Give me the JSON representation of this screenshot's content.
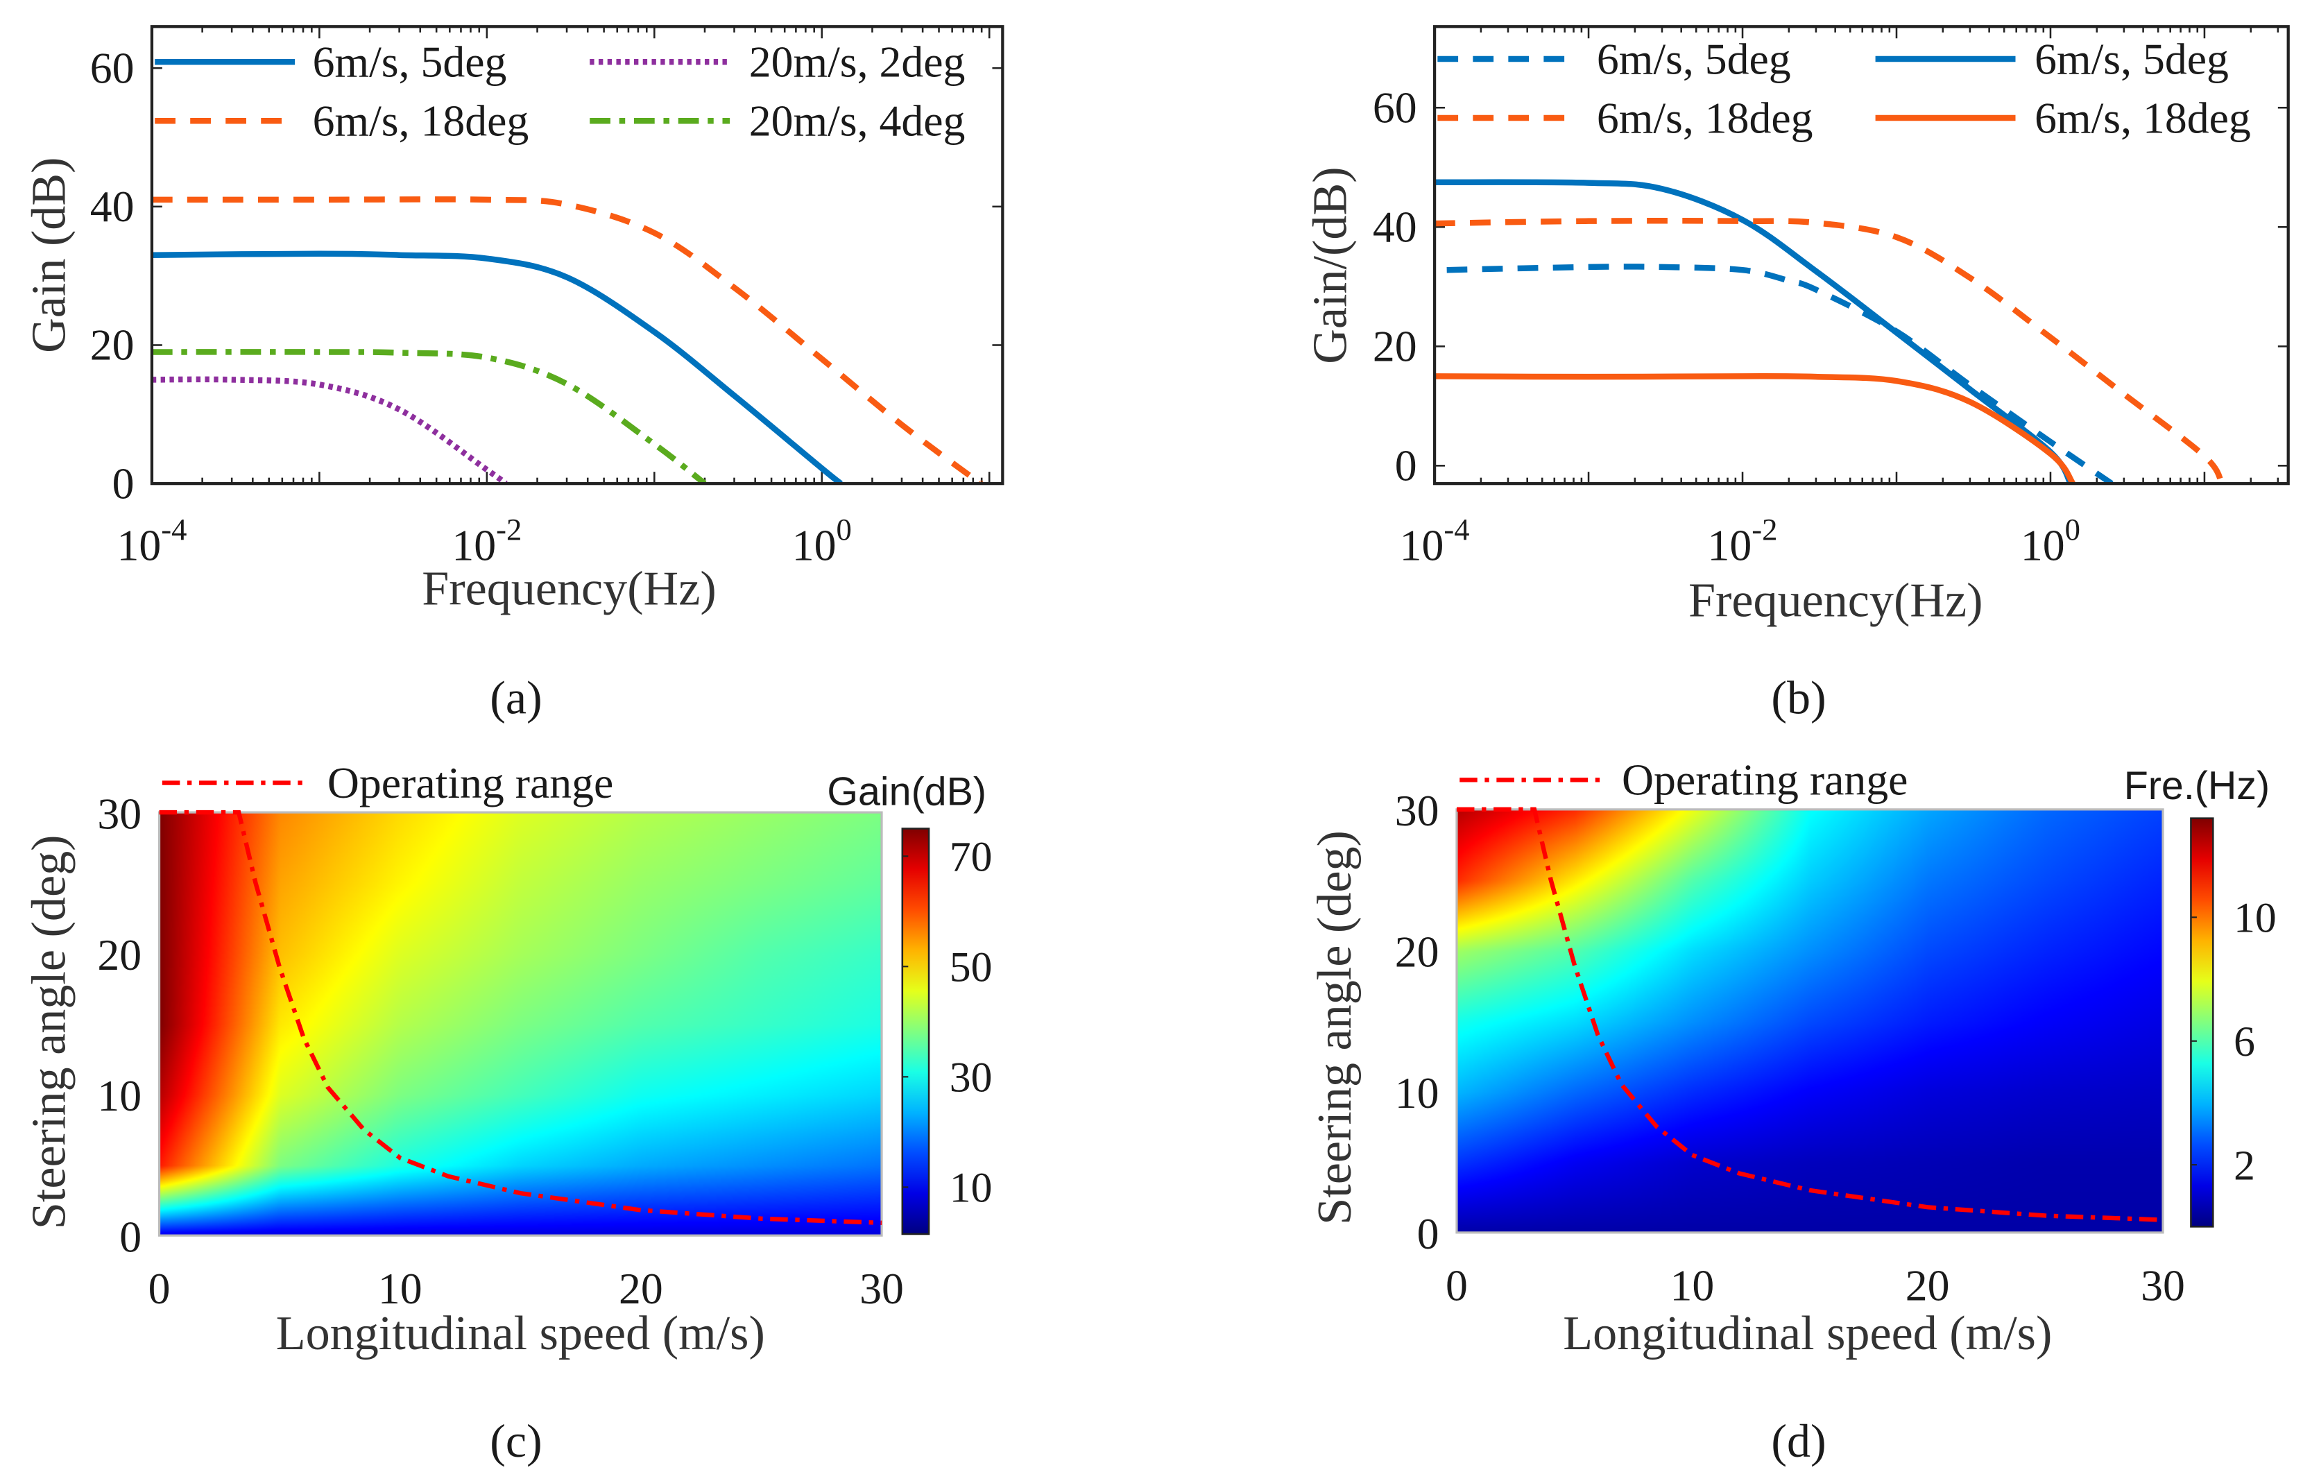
{
  "colors": {
    "blue": "#0072BD",
    "orange": "#F95B12",
    "purple": "#8E2F9E",
    "green": "#5AAB1E",
    "red": "#FF0000"
  },
  "captions": {
    "a": "(a)",
    "b": "(b)",
    "c": "(c)",
    "d": "(d)"
  },
  "chart_data": [
    {
      "id": "a",
      "type": "line",
      "xscale": "log",
      "xlim": [
        0.0001,
        12
      ],
      "ylim": [
        0,
        66
      ],
      "xlabel": "Frequency(Hz)",
      "ylabel": "Gain (dB)",
      "xticks": [
        {
          "v": 0.0001,
          "base": "10",
          "exp": "-4"
        },
        {
          "v": 0.01,
          "base": "10",
          "exp": "-2"
        },
        {
          "v": 1,
          "base": "10",
          "exp": "0"
        }
      ],
      "yticks": [
        0,
        20,
        40,
        60
      ],
      "legend_position": "top",
      "series": [
        {
          "name": "6m/s, 5deg",
          "color": "blue",
          "style": "solid",
          "x": [
            0.0001,
            0.001,
            0.003,
            0.01,
            0.03,
            0.1,
            0.3,
            1,
            1.3
          ],
          "y": [
            33,
            33.2,
            33,
            32.5,
            29.8,
            21.9,
            12.7,
            2.2,
            0
          ]
        },
        {
          "name": "20m/s, 2deg",
          "color": "purple",
          "style": "dotted",
          "x": [
            0.0001,
            0.0003,
            0.001,
            0.003,
            0.01,
            0.013
          ],
          "y": [
            15,
            15,
            14.3,
            10.7,
            2,
            0
          ]
        },
        {
          "name": "6m/s, 18deg",
          "color": "orange",
          "style": "dashed",
          "x": [
            0.0001,
            0.001,
            0.01,
            0.03,
            0.1,
            0.3,
            1,
            3,
            8,
            9
          ],
          "y": [
            41,
            41,
            41,
            40.3,
            36.2,
            28.3,
            18,
            8.5,
            0.8,
            0
          ]
        },
        {
          "name": "20m/s, 4deg",
          "color": "green",
          "style": "dashdot",
          "x": [
            0.0001,
            0.001,
            0.003,
            0.01,
            0.03,
            0.1,
            0.2
          ],
          "y": [
            19,
            19,
            18.9,
            18.2,
            14.4,
            5.7,
            0
          ]
        }
      ]
    },
    {
      "id": "b",
      "type": "line",
      "xscale": "log",
      "xlim": [
        0.0001,
        35
      ],
      "ylim": [
        -3,
        73.6
      ],
      "xlabel": "Frequency(Hz)",
      "ylabel": "Gain/(dB)",
      "xticks": [
        {
          "v": 0.0001,
          "base": "10",
          "exp": "-4"
        },
        {
          "v": 0.01,
          "base": "10",
          "exp": "-2"
        },
        {
          "v": 1,
          "base": "10",
          "exp": "0"
        }
      ],
      "yticks": [
        0,
        20,
        40,
        60
      ],
      "legend_position": "top",
      "series": [
        {
          "name": "6m/s, 5deg",
          "color": "blue",
          "style": "dashed",
          "x": [
            0.00012,
            0.001,
            0.003,
            0.01,
            0.02,
            0.03,
            0.1,
            0.3,
            1,
            2.5
          ],
          "y": [
            32.8,
            33.3,
            33.3,
            32.8,
            31,
            29.5,
            22.5,
            13.5,
            4,
            -3
          ]
        },
        {
          "name": "6m/s, 5deg",
          "color": "blue",
          "style": "solid",
          "x": [
            0.0001,
            0.001,
            0.003,
            0.01,
            0.03,
            0.1,
            0.3,
            1,
            1.35
          ],
          "y": [
            47.5,
            47.4,
            46.4,
            41.2,
            32.6,
            22.3,
            12.8,
            2.3,
            -3
          ]
        },
        {
          "name": "6m/s, 18deg",
          "color": "orange",
          "style": "dashed",
          "x": [
            0.0001,
            0.001,
            0.01,
            0.03,
            0.1,
            0.3,
            1,
            3,
            10,
            13
          ],
          "y": [
            40.6,
            41,
            41,
            40.7,
            38.3,
            31.5,
            21.5,
            12,
            1.6,
            -3
          ]
        },
        {
          "name": "6m/s, 18deg",
          "color": "orange",
          "style": "solid",
          "x": [
            0.0001,
            0.001,
            0.01,
            0.03,
            0.1,
            0.3,
            1,
            1.4
          ],
          "y": [
            15,
            14.9,
            15,
            14.9,
            14.2,
            10.7,
            2,
            -3
          ]
        }
      ]
    },
    {
      "id": "c",
      "type": "heatmap",
      "xlim": [
        0,
        30
      ],
      "ylim": [
        0,
        30
      ],
      "xlabel": "Longitudinal speed (m/s)",
      "ylabel": "Steering angle (deg)",
      "xticks": [
        0,
        10,
        20,
        30
      ],
      "yticks": [
        0,
        10,
        20,
        30
      ],
      "colorbar": {
        "title": "Gain(dB)",
        "range": [
          1.5,
          75
        ],
        "ticks": [
          10,
          30,
          50,
          70
        ],
        "colormap": "jet"
      },
      "grid_x": [
        0,
        5,
        10,
        15,
        20,
        25,
        30
      ],
      "grid_y": [
        0,
        5,
        10,
        15,
        20,
        25,
        30
      ],
      "z": [
        [
          8,
          8,
          8,
          8,
          8,
          8,
          8
        ],
        [
          64,
          38,
          31,
          26,
          23,
          21,
          19
        ],
        [
          71,
          45,
          38,
          34,
          30,
          28,
          26
        ],
        [
          75,
          49,
          42,
          38,
          35,
          33,
          31
        ],
        [
          75,
          52,
          45,
          41,
          38,
          35,
          33
        ],
        [
          75,
          54,
          48,
          43,
          40,
          38,
          36
        ],
        [
          75,
          56,
          50,
          45,
          42,
          40,
          38
        ]
      ],
      "legend": "Operating range",
      "operating_range": {
        "x": [
          0,
          3.3,
          4,
          5,
          6,
          7,
          8.5,
          10,
          12,
          15,
          20,
          25,
          30
        ],
        "y": [
          30,
          30,
          25,
          19,
          14,
          10.5,
          7.5,
          5.5,
          4.2,
          3,
          1.8,
          1.2,
          0.9
        ]
      }
    },
    {
      "id": "d",
      "type": "heatmap",
      "xlim": [
        0,
        30
      ],
      "ylim": [
        0,
        30
      ],
      "xlabel": "Longitudinal speed (m/s)",
      "ylabel": "Steering angle (deg)",
      "xticks": [
        0,
        10,
        20,
        30
      ],
      "yticks": [
        0,
        10,
        20,
        30
      ],
      "colorbar": {
        "title": "Fre.(Hz)",
        "range": [
          0,
          13.2
        ],
        "ticks": [
          2,
          6,
          10
        ],
        "colormap": "jet"
      },
      "grid_x": [
        0,
        5,
        10,
        15,
        20,
        25,
        30
      ],
      "grid_y": [
        0,
        5,
        10,
        15,
        20,
        25,
        30
      ],
      "z": [
        [
          0.5,
          0.5,
          0.5,
          0.5,
          0.5,
          0.5,
          0.5
        ],
        [
          2.3,
          1.5,
          1,
          0.8,
          0.7,
          0.6,
          0.6
        ],
        [
          4,
          3,
          2.2,
          1.6,
          1.2,
          1,
          0.9
        ],
        [
          5.2,
          4.5,
          3.5,
          2.6,
          2,
          1.6,
          1.3
        ],
        [
          7,
          6,
          4.5,
          3.5,
          2.6,
          2.1,
          1.7
        ],
        [
          11,
          8.5,
          6,
          4.3,
          3.2,
          2.6,
          2.1
        ],
        [
          12.5,
          11,
          8,
          5,
          3.8,
          3,
          2.5
        ]
      ],
      "legend": "Operating range",
      "operating_range": {
        "x": [
          0,
          3.3,
          4,
          5,
          6,
          7,
          8.5,
          10,
          12,
          15,
          20,
          25,
          30
        ],
        "y": [
          30,
          30,
          25,
          19,
          14,
          10.5,
          7.5,
          5.5,
          4.2,
          3,
          1.8,
          1.2,
          0.9
        ]
      }
    }
  ]
}
